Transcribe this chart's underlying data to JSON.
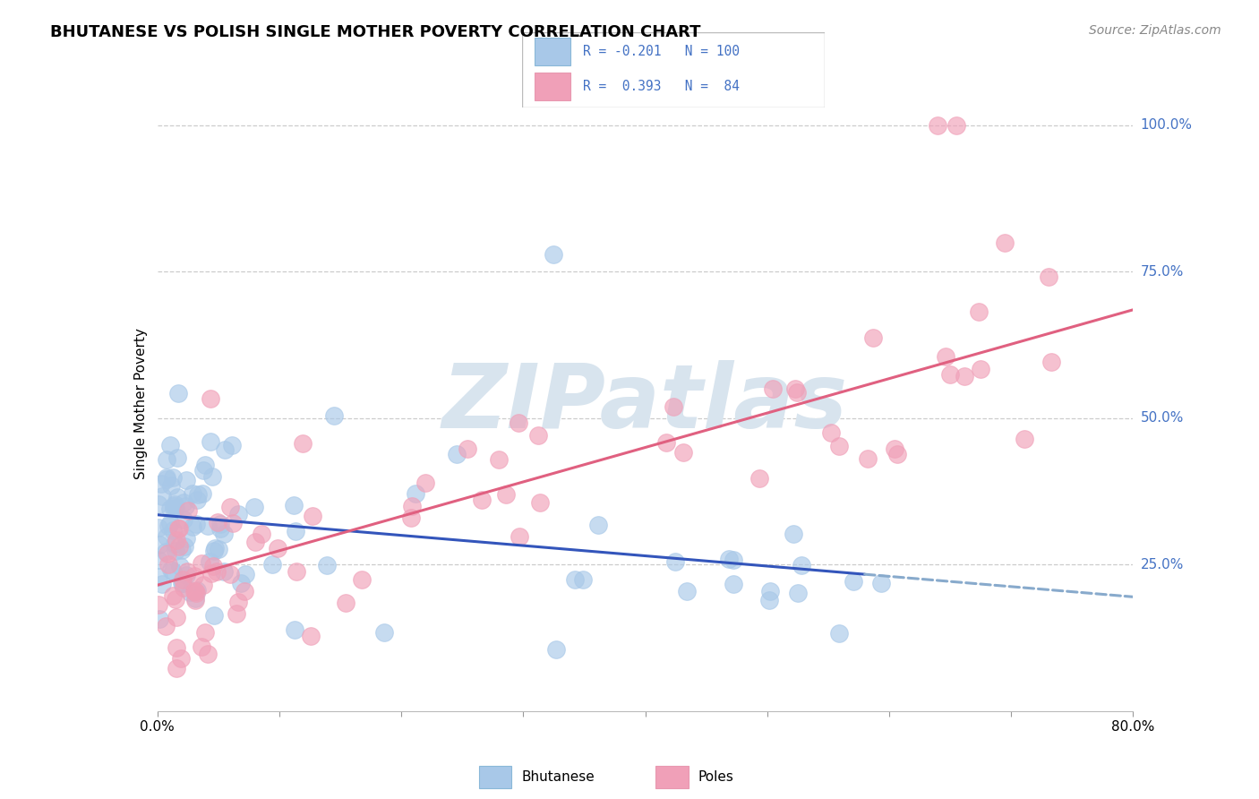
{
  "title": "BHUTANESE VS POLISH SINGLE MOTHER POVERTY CORRELATION CHART",
  "source": "Source: ZipAtlas.com",
  "ylabel_label": "Single Mother Poverty",
  "right_yticks": [
    "100.0%",
    "75.0%",
    "50.0%",
    "25.0%"
  ],
  "right_ytick_vals": [
    1.0,
    0.75,
    0.5,
    0.25
  ],
  "bhutanese_color": "#a8c8e8",
  "poles_color": "#f0a0b8",
  "blue_line_color": "#3355bb",
  "pink_line_color": "#e06080",
  "dashed_line_color": "#88aacc",
  "watermark_color": "#d8e4ee",
  "R_bhutanese": -0.201,
  "N_bhutanese": 100,
  "R_poles": 0.393,
  "N_poles": 84,
  "xlim": [
    0.0,
    0.8
  ],
  "ylim": [
    0.0,
    1.05
  ],
  "legend_blue_text": "R = -0.201   N = 100",
  "legend_pink_text": "R =  0.393   N =  84",
  "legend_text_color": "#4472c4",
  "bottom_label_bhutanese": "Bhutanese",
  "bottom_label_poles": "Poles"
}
